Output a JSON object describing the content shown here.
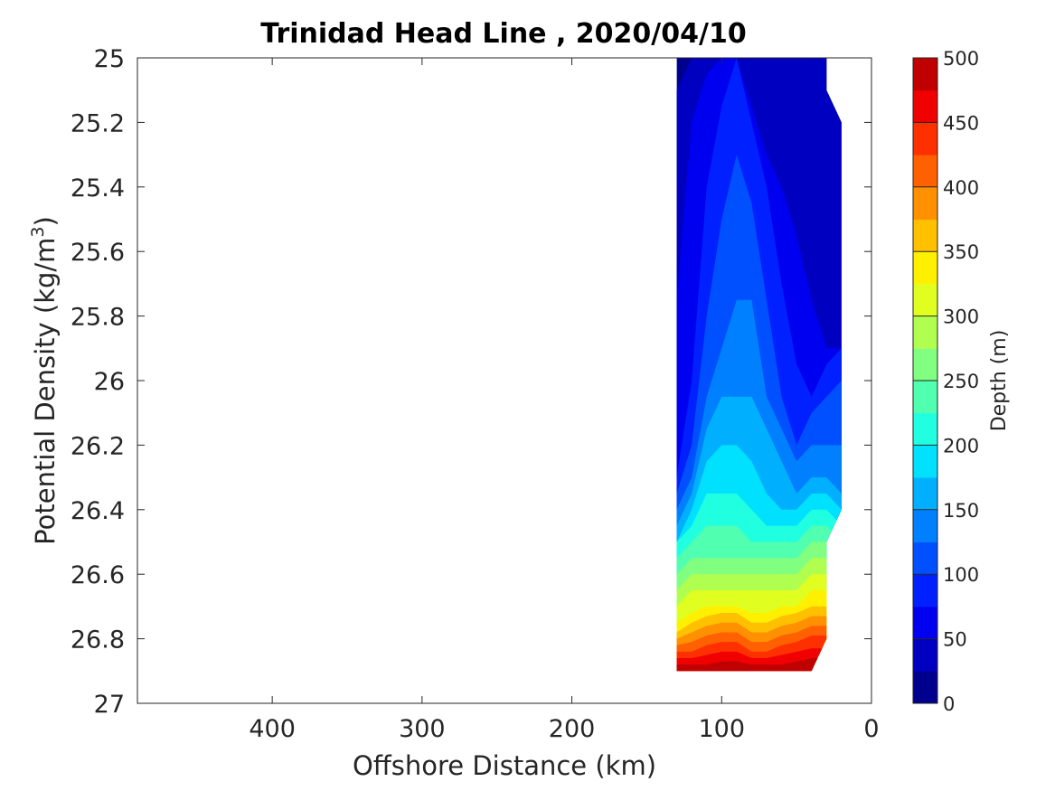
{
  "chart_data": {
    "type": "filled-contour",
    "title": "Trinidad Head Line , 2020/04/10",
    "xlabel": "Offshore Distance (km)",
    "ylabel": "Potential Density (kg/m",
    "ylabel_superscript": "3",
    "ylabel_suffix": ")",
    "colorbar_label": "Depth (m)",
    "xlim": [
      490,
      0
    ],
    "ylim": [
      25,
      27
    ],
    "y_reversed": true,
    "x_reversed": true,
    "grid": false,
    "x_ticks": [
      400,
      300,
      200,
      100,
      0
    ],
    "x_tick_labels": [
      "400",
      "300",
      "200",
      "100",
      "0"
    ],
    "y_ticks": [
      25,
      25.2,
      25.4,
      25.6,
      25.8,
      26,
      26.2,
      26.4,
      26.6,
      26.8,
      27
    ],
    "y_tick_labels": [
      "25",
      "25.2",
      "25.4",
      "25.6",
      "25.8",
      "26",
      "26.2",
      "26.4",
      "26.6",
      "26.8",
      "27"
    ],
    "colorbar": {
      "min": 0,
      "max": 500,
      "ticks": [
        0,
        50,
        100,
        150,
        200,
        250,
        300,
        350,
        400,
        450,
        500
      ],
      "tick_labels": [
        "0",
        "50",
        "100",
        "150",
        "200",
        "250",
        "300",
        "350",
        "400",
        "450",
        "500"
      ],
      "levels": [
        0,
        25,
        50,
        75,
        100,
        125,
        150,
        175,
        200,
        225,
        250,
        275,
        300,
        325,
        350,
        375,
        400,
        425,
        450,
        475,
        500
      ],
      "colormap": "jet",
      "colors": [
        "#00008f",
        "#0000c0",
        "#0000f0",
        "#0020ff",
        "#0050ff",
        "#0080ff",
        "#00b0ff",
        "#00e0ff",
        "#20ffe0",
        "#50ffb0",
        "#80ff80",
        "#b0ff50",
        "#e0ff20",
        "#fff000",
        "#ffc000",
        "#ff9000",
        "#ff6000",
        "#ff3000",
        "#f00000",
        "#c00000"
      ]
    },
    "data_extent": {
      "x_range_km": [
        130,
        20
      ],
      "density_range": [
        25,
        26.9
      ]
    },
    "stations_x_km": [
      130,
      120,
      110,
      100,
      90,
      80,
      70,
      60,
      50,
      40,
      30,
      20
    ],
    "depth_contours_density": {
      "25": [
        25.1,
        25,
        25,
        25,
        25,
        25,
        25,
        25,
        25,
        25,
        25,
        25
      ],
      "50": [
        25.75,
        25.2,
        25.05,
        25,
        25,
        25.15,
        25.3,
        25.4,
        25.55,
        25.75,
        25.9,
        25.9
      ],
      "75": [
        26.3,
        26,
        25.4,
        25.15,
        25,
        25.2,
        25.4,
        25.7,
        25.95,
        26.05,
        25.95,
        25.9
      ],
      "100": [
        26.35,
        26.2,
        25.8,
        25.5,
        25.3,
        25.45,
        25.75,
        26.05,
        26.2,
        26.1,
        26.05,
        26.0
      ],
      "125": [
        26.4,
        26.3,
        26.05,
        25.9,
        25.75,
        25.75,
        26.05,
        26.15,
        26.25,
        26.2,
        26.2,
        26.2
      ],
      "150": [
        26.45,
        26.35,
        26.15,
        26.05,
        26.05,
        26.05,
        26.15,
        26.25,
        26.35,
        26.3,
        26.3,
        26.35
      ],
      "175": [
        26.5,
        26.4,
        26.25,
        26.2,
        26.2,
        26.25,
        26.35,
        26.4,
        26.4,
        26.35,
        26.35,
        26.4
      ],
      "200": [
        26.5,
        26.45,
        26.35,
        26.35,
        26.35,
        26.4,
        26.45,
        26.45,
        26.45,
        26.4,
        26.4,
        26.45
      ],
      "225": [
        26.55,
        26.5,
        26.45,
        26.45,
        26.45,
        26.5,
        26.5,
        26.5,
        26.5,
        26.45,
        26.45,
        26.5
      ],
      "250": [
        26.6,
        26.55,
        26.55,
        26.55,
        26.55,
        26.55,
        26.55,
        26.55,
        26.55,
        26.5,
        26.5,
        26.55
      ],
      "275": [
        26.65,
        26.6,
        26.6,
        26.6,
        26.6,
        26.6,
        26.6,
        26.6,
        26.6,
        26.55,
        26.55,
        26.6
      ],
      "300": [
        26.7,
        26.65,
        26.65,
        26.65,
        26.65,
        26.65,
        26.65,
        26.65,
        26.65,
        26.6,
        26.6,
        26.65
      ],
      "325": [
        26.75,
        26.72,
        26.7,
        26.7,
        26.7,
        26.72,
        26.72,
        26.7,
        26.7,
        26.65,
        26.65,
        26.7
      ],
      "350": [
        26.78,
        26.75,
        26.73,
        26.72,
        26.72,
        26.75,
        26.75,
        26.73,
        26.72,
        26.7,
        26.7,
        26.75
      ],
      "375": [
        26.8,
        26.78,
        26.76,
        26.75,
        26.75,
        26.78,
        26.78,
        26.76,
        26.75,
        26.73,
        26.73,
        26.78
      ],
      "400": [
        26.82,
        26.81,
        26.79,
        26.78,
        26.78,
        26.81,
        26.81,
        26.79,
        26.78,
        26.76,
        26.76,
        26.81
      ],
      "425": [
        26.84,
        26.84,
        26.82,
        26.81,
        26.81,
        26.84,
        26.84,
        26.82,
        26.81,
        26.79,
        26.79,
        26.84
      ],
      "450": [
        26.86,
        26.86,
        26.85,
        26.84,
        26.84,
        26.86,
        26.86,
        26.85,
        26.84,
        26.83,
        26.83,
        26.86
      ],
      "475": [
        26.88,
        26.88,
        26.88,
        26.87,
        26.87,
        26.88,
        26.88,
        26.88,
        26.87,
        26.86,
        26.86,
        26.88
      ]
    }
  }
}
